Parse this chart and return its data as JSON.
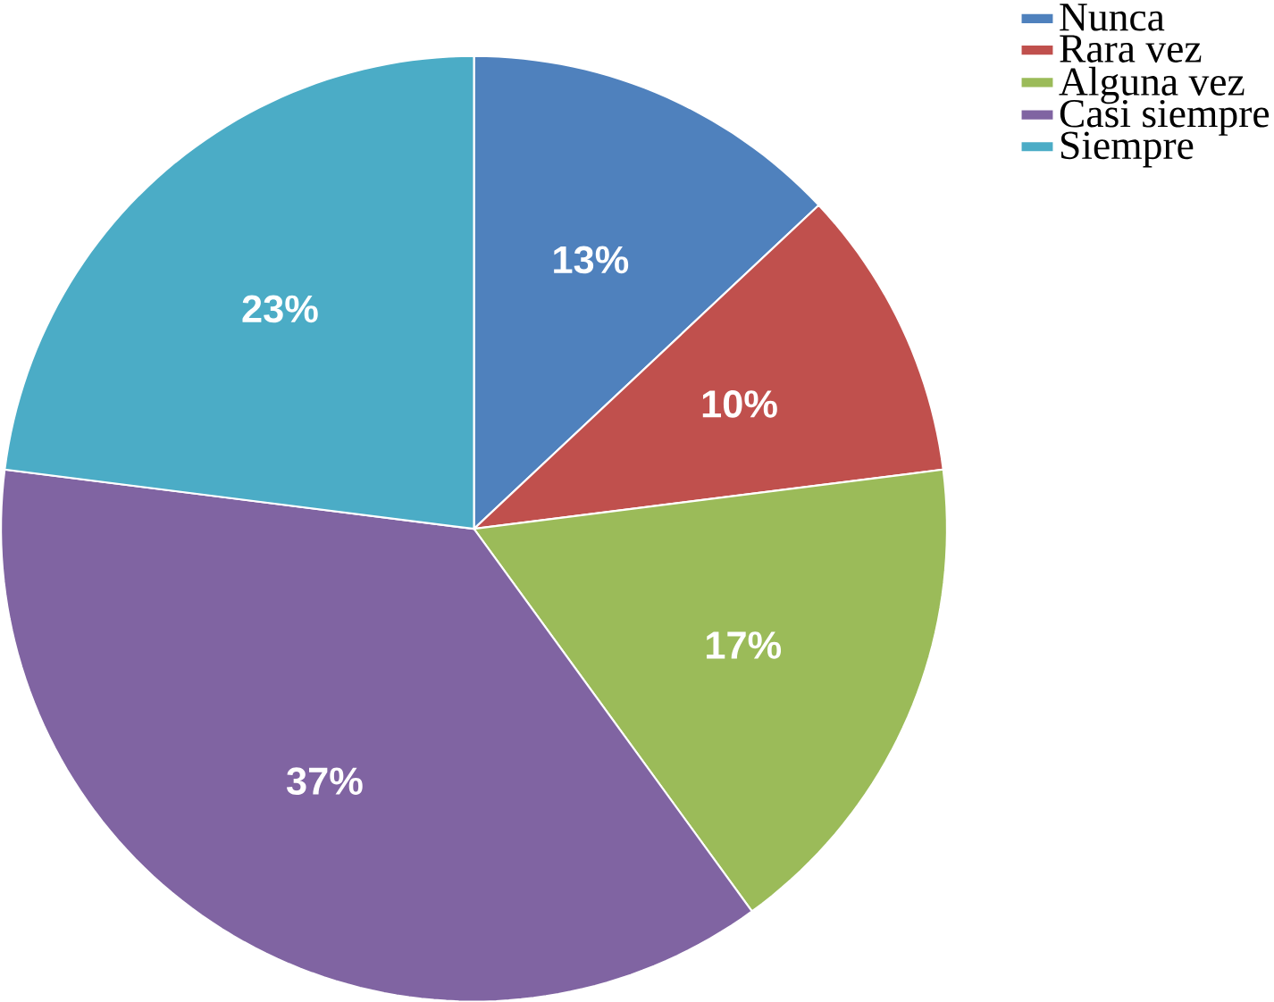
{
  "chart_data": {
    "type": "pie",
    "categories": [
      "Nunca",
      "Rara vez",
      "Alguna vez",
      "Casi siempre",
      "Siempre"
    ],
    "values": [
      13,
      10,
      17,
      37,
      23
    ],
    "colors": [
      "#4f81bd",
      "#c0504d",
      "#9bbb59",
      "#8064a2",
      "#4bacc6"
    ],
    "value_labels": [
      "13%",
      "10%",
      "17%",
      "37%",
      "23%"
    ],
    "legend": "top right"
  }
}
